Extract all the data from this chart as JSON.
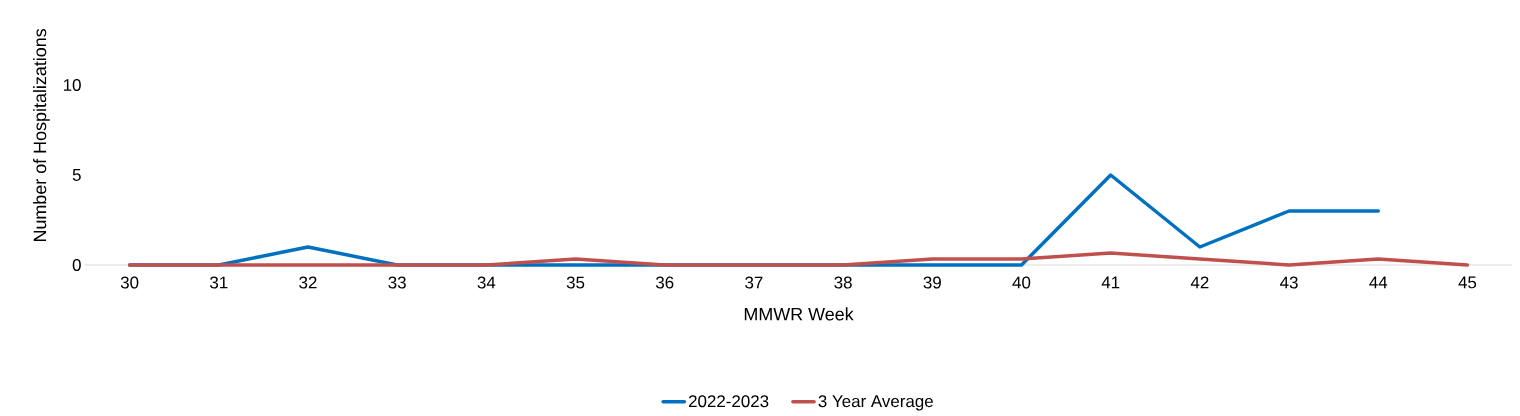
{
  "chart_data": {
    "type": "line",
    "xlabel": "MMWR Week",
    "ylabel": "Number of Hospitalizations",
    "categories": [
      "30",
      "31",
      "32",
      "33",
      "34",
      "35",
      "36",
      "37",
      "38",
      "39",
      "40",
      "41",
      "42",
      "43",
      "44",
      "45"
    ],
    "series": [
      {
        "name": "2022-2023",
        "color": "#0070c0",
        "values": [
          0,
          0,
          1,
          0,
          0,
          0,
          0,
          0,
          0,
          0,
          0,
          5,
          1,
          3,
          3,
          null
        ]
      },
      {
        "name": "3 Year Average",
        "color": "#c0504d",
        "values": [
          0,
          0,
          0,
          0,
          0,
          0.33,
          0,
          0,
          0,
          0.33,
          0.33,
          0.67,
          0.33,
          0,
          0.33,
          0
        ]
      }
    ],
    "ylim": [
      0,
      10
    ],
    "yticks": [
      0,
      5,
      10
    ],
    "grid": false,
    "legend": "bottom",
    "marker": "none",
    "line_style": "solid"
  }
}
